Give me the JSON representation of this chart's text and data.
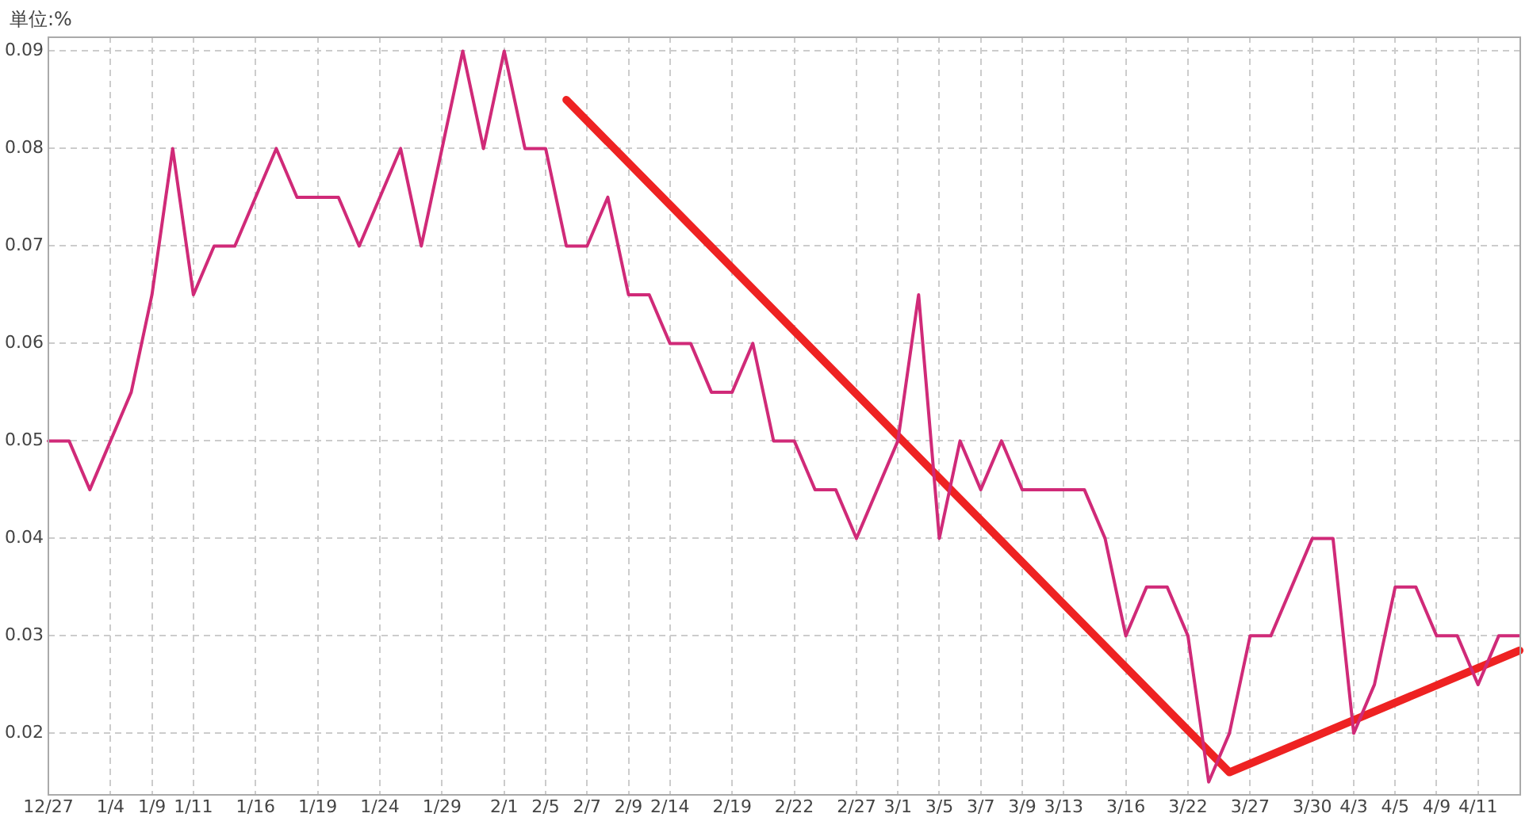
{
  "chart_data": {
    "type": "line",
    "ylabel": "単位:%",
    "categories": [
      "12/27",
      null,
      null,
      "1/4",
      null,
      "1/9",
      null,
      "1/11",
      null,
      null,
      "1/16",
      null,
      null,
      "1/19",
      null,
      null,
      "1/24",
      null,
      null,
      "1/29",
      null,
      null,
      "2/1",
      null,
      "2/5",
      null,
      "2/7",
      null,
      "2/9",
      null,
      "2/14",
      null,
      null,
      "2/19",
      null,
      null,
      "2/22",
      null,
      null,
      "2/27",
      null,
      "3/1",
      null,
      "3/5",
      null,
      "3/7",
      null,
      "3/9",
      null,
      "3/13",
      null,
      null,
      "3/16",
      null,
      null,
      "3/22",
      null,
      null,
      "3/27",
      null,
      null,
      "3/30",
      null,
      "4/3",
      null,
      "4/5",
      null,
      "4/9",
      null,
      "4/11",
      null,
      null
    ],
    "series": [
      {
        "color": "#d02a78",
        "values": [
          0.05,
          0.05,
          0.045,
          0.05,
          0.055,
          0.065,
          0.08,
          0.065,
          0.07,
          0.07,
          0.075,
          0.08,
          0.075,
          0.075,
          0.075,
          0.07,
          0.075,
          0.08,
          0.07,
          0.08,
          0.09,
          0.08,
          0.09,
          0.08,
          0.08,
          0.07,
          0.07,
          0.075,
          0.065,
          0.065,
          0.06,
          0.06,
          0.055,
          0.055,
          0.06,
          0.05,
          0.05,
          0.045,
          0.045,
          0.04,
          0.045,
          0.05,
          0.065,
          0.04,
          0.05,
          0.045,
          0.05,
          0.045,
          0.045,
          0.045,
          0.045,
          0.04,
          0.03,
          0.035,
          0.035,
          0.03,
          0.015,
          0.02,
          0.03,
          0.03,
          0.035,
          0.04,
          0.04,
          0.02,
          0.025,
          0.035,
          0.035,
          0.03,
          0.03,
          0.025,
          0.03,
          0.03
        ]
      },
      {
        "type": "line",
        "color": "#ee2222",
        "values": [
          null,
          null,
          null,
          null,
          null,
          null,
          null,
          null,
          null,
          null,
          null,
          null,
          null,
          null,
          null,
          null,
          null,
          null,
          null,
          null,
          null,
          null,
          null,
          null,
          null,
          0.085,
          null,
          null,
          null,
          null,
          null,
          null,
          null,
          null,
          null,
          null,
          null,
          null,
          null,
          null,
          null,
          null,
          null,
          null,
          null,
          null,
          null,
          null,
          null,
          null,
          null,
          null,
          null,
          null,
          null,
          null,
          null,
          0.016,
          null,
          null,
          null,
          null,
          null,
          null,
          null,
          null,
          null,
          null,
          null,
          null,
          null,
          0.0285
        ]
      }
    ],
    "ylim": [
      0.0138,
      0.0915
    ],
    "yticks": [
      0.02,
      0.03,
      0.04,
      0.05,
      0.06,
      0.07,
      0.08,
      0.09
    ],
    "grid": true,
    "legend": false,
    "marker": "none",
    "line_style": "solid"
  }
}
